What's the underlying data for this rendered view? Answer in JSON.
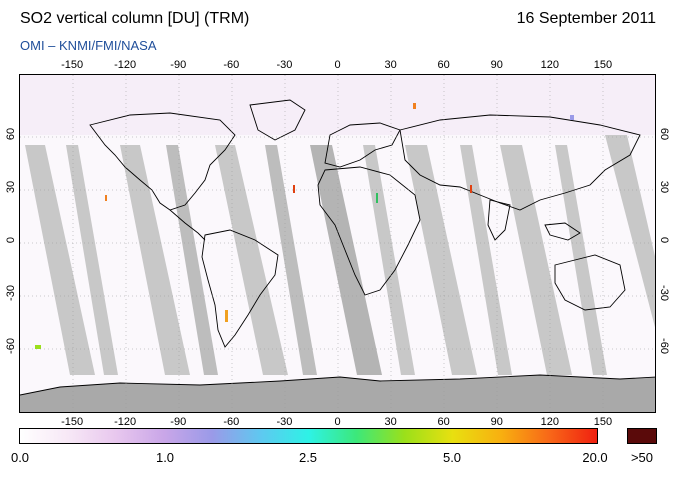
{
  "header": {
    "title": "SO2 vertical column [DU] (TRM)",
    "date": "16 September 2011",
    "subtitle": "OMI  –  KNMI/FMI/NASA"
  },
  "map": {
    "projection": "equirectangular",
    "lon_ticks_top": [
      "-150",
      "-120",
      "-90",
      "-60",
      "-30",
      "0",
      "30",
      "60",
      "90",
      "120",
      "150"
    ],
    "lon_ticks_bottom": [
      "-150",
      "-120",
      "-90",
      "-60",
      "-30",
      "0",
      "30",
      "60",
      "90",
      "120",
      "150"
    ],
    "lat_ticks_left": [
      "60",
      "30",
      "0",
      "-30",
      "-60"
    ],
    "lat_ticks_right": [
      "60",
      "30",
      "0",
      "-30",
      "-60"
    ],
    "colors": {
      "background": "#fbf8fc",
      "no_data_gray": "#c8c8c8",
      "dark_gray": "#a9a9a9",
      "coastline": "#000000"
    }
  },
  "colorbar": {
    "labels": [
      "0.0",
      "1.0",
      "2.5",
      "5.0",
      "20.0"
    ],
    "over_label": ">50",
    "over_color": "#5a0a0a",
    "stops": [
      "#ffffff",
      "#f7e8f6",
      "#e8c7ee",
      "#c9a6e8",
      "#9a9ae8",
      "#5fc8f0",
      "#2ef2e6",
      "#3ce87a",
      "#9be01a",
      "#e8e010",
      "#f8b010",
      "#f86818",
      "#f02010"
    ]
  }
}
